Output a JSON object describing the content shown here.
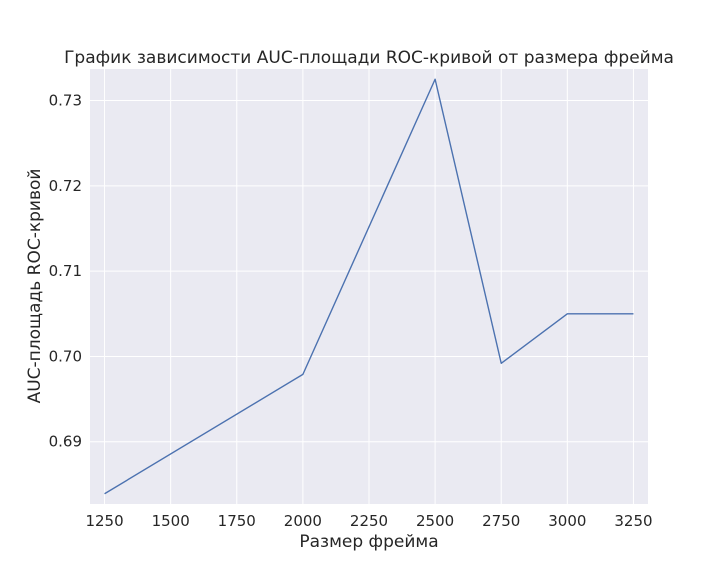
{
  "chart_data": {
    "type": "line",
    "title": "График зависимости AUC-площади ROC-кривой от размера фрейма",
    "xlabel": "Размер фрейма",
    "ylabel": "AUC-площадь ROC-кривой",
    "x": [
      1250,
      2000,
      2500,
      2750,
      3000,
      3250
    ],
    "series": [
      {
        "values": [
          0.6839,
          0.6979,
          0.7325,
          0.6992,
          0.705,
          0.705
        ]
      }
    ],
    "xlim": [
      1195,
      3305
    ],
    "ylim": [
      0.6827,
      0.7337
    ],
    "xticks": [
      1250,
      1500,
      1750,
      2000,
      2250,
      2500,
      2750,
      3000,
      3250
    ],
    "xtick_labels": [
      "1250",
      "1500",
      "1750",
      "2000",
      "2250",
      "2500",
      "2750",
      "3000",
      "3250"
    ],
    "yticks": [
      0.69,
      0.7,
      0.71,
      0.72,
      0.73
    ],
    "ytick_labels": [
      "0.69",
      "0.70",
      "0.71",
      "0.72",
      "0.73"
    ],
    "grid": true,
    "colors": {
      "background": "#eaeaf2",
      "grid": "#ffffff",
      "line": "#4c72b0",
      "text": "#262626"
    }
  }
}
